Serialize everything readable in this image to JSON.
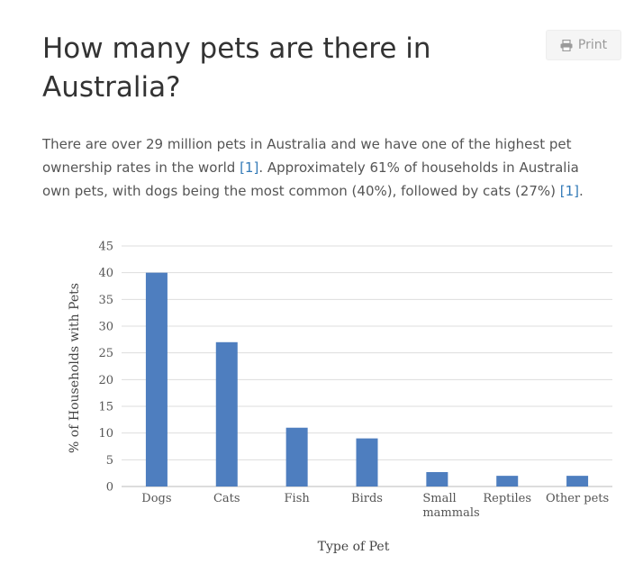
{
  "page": {
    "title": "How many pets are there in Australia?",
    "print_label": "Print",
    "intro": {
      "part1": "There are over 29 million pets in Australia and we have one of the highest pet ownership rates in the world ",
      "ref1": "[1]",
      "part2": ". Approximately 61% of households in Australia own pets, with dogs being the most common (40%), followed by cats (27%) ",
      "ref2": "[1]",
      "part3": "."
    }
  },
  "colors": {
    "bar": "#4e7ebf",
    "grid": "#dddddd",
    "link": "#337ab7"
  },
  "icons": {
    "print": "printer-icon"
  },
  "chart_data": {
    "type": "bar",
    "categories": [
      "Dogs",
      "Cats",
      "Fish",
      "Birds",
      "Small mammals",
      "Reptiles",
      "Other pets"
    ],
    "category_lines": [
      [
        "Dogs"
      ],
      [
        "Cats"
      ],
      [
        "Fish"
      ],
      [
        "Birds"
      ],
      [
        "Small",
        "mammals"
      ],
      [
        "Reptiles"
      ],
      [
        "Other pets"
      ]
    ],
    "values": [
      40,
      27,
      11,
      9,
      2.7,
      2,
      2
    ],
    "xlabel": "Type of Pet",
    "ylabel": "% of Households with Pets",
    "ylim": [
      0,
      45
    ],
    "yticks": [
      0,
      5,
      10,
      15,
      20,
      25,
      30,
      35,
      40,
      45
    ],
    "grid": true
  }
}
